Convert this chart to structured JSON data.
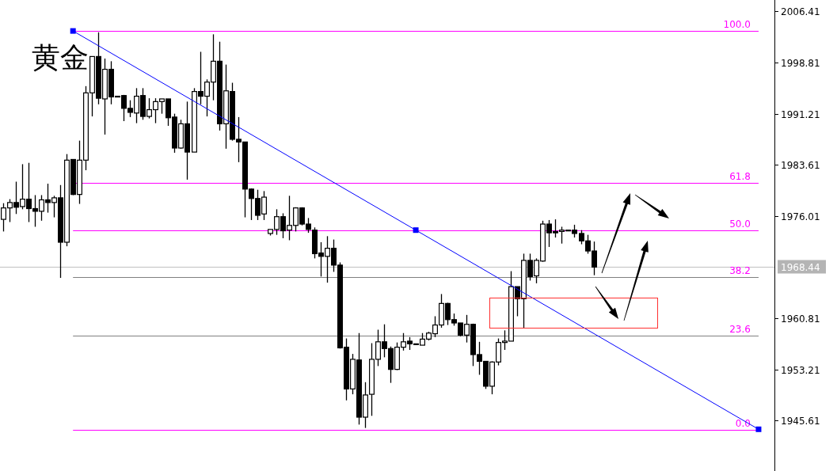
{
  "chart_data": {
    "type": "candlestick",
    "title": "黄金",
    "tick_labels": "y",
    "categories": [
      null,
      null,
      null,
      null,
      null,
      null,
      null,
      null,
      null,
      null,
      null,
      null,
      null,
      null,
      null,
      null,
      null,
      null,
      null,
      null,
      null,
      null,
      null,
      null,
      null,
      null,
      null,
      null,
      null,
      null,
      null,
      null,
      null,
      null,
      null,
      null,
      null,
      null,
      null,
      null,
      null,
      null,
      null,
      null,
      null,
      null,
      null,
      null,
      null,
      null,
      null,
      null,
      null,
      null,
      null,
      null,
      null,
      null,
      null,
      null,
      null,
      null,
      null,
      null,
      null,
      null,
      null,
      null,
      null,
      null,
      null,
      null,
      null,
      null,
      null,
      null,
      null,
      null,
      null,
      null,
      null,
      null,
      null,
      null,
      null,
      null,
      null,
      null,
      null,
      null,
      null,
      null,
      null,
      null,
      null,
      null,
      null,
      null,
      null,
      null,
      null,
      null,
      null,
      null,
      null,
      null,
      null,
      null,
      null,
      null,
      null,
      null,
      null,
      null,
      null,
      null,
      null,
      null,
      null,
      null,
      null,
      null
    ],
    "ohlc": [
      [
        1975.5,
        1977.9,
        1973.7,
        1977.2
      ],
      [
        1977.2,
        1978.5,
        1975.1,
        1978.0
      ],
      [
        1978.0,
        1981.1,
        1976.3,
        1977.3
      ],
      [
        1977.4,
        1983.7,
        1977.0,
        1978.5
      ],
      [
        1978.5,
        1983.9,
        1975.1,
        1977.1
      ],
      [
        1977.1,
        1979.1,
        1974.4,
        1976.7
      ],
      [
        1976.7,
        1979.1,
        1975.3,
        1978.4
      ],
      [
        1978.4,
        1980.8,
        1976.5,
        1978.0
      ],
      [
        1978.0,
        1979.0,
        1975.8,
        1978.7
      ],
      [
        1978.7,
        1980.6,
        1966.8,
        1972.1
      ],
      [
        1972.1,
        1985.2,
        1971.5,
        1984.3
      ],
      [
        1984.4,
        1984.4,
        1979.1,
        1979.2
      ],
      [
        1979.2,
        1987.2,
        1977.8,
        1984.3
      ],
      [
        1984.3,
        1995.3,
        1982.8,
        1994.3
      ],
      [
        1994.3,
        1999.7,
        1990.8,
        1999.7
      ],
      [
        1999.7,
        2003.3,
        1992.6,
        1993.5
      ],
      [
        1993.4,
        1999.4,
        1988.1,
        1997.8
      ],
      [
        1997.8,
        1999.0,
        1992.6,
        1993.7
      ],
      [
        1993.8,
        1993.8,
        1993.8,
        1993.8
      ],
      [
        1993.9,
        1994.0,
        1990.1,
        1992.0
      ],
      [
        1992.0,
        1993.2,
        1990.7,
        1991.4
      ],
      [
        1991.3,
        1995.0,
        1989.8,
        1993.8
      ],
      [
        1993.9,
        1995.0,
        1990.3,
        1990.8
      ],
      [
        1990.8,
        1993.5,
        1990.5,
        1991.8
      ],
      [
        1991.8,
        1993.5,
        1989.8,
        1993.0
      ],
      [
        1993.0,
        1993.4,
        1991.2,
        1993.4
      ],
      [
        1993.4,
        1993.4,
        1989.4,
        1990.6
      ],
      [
        1990.7,
        1991.2,
        1985.4,
        1986.1
      ],
      [
        1986.1,
        1990.3,
        1986.0,
        1989.7
      ],
      [
        1989.7,
        1993.0,
        1981.4,
        1985.5
      ],
      [
        1985.5,
        1995.0,
        1985.5,
        1994.5
      ],
      [
        1994.5,
        2000.4,
        1992.6,
        1993.8
      ],
      [
        1993.8,
        1996.3,
        1990.8,
        1995.9
      ],
      [
        1995.9,
        2003.0,
        1993.2,
        1999.0
      ],
      [
        1999.0,
        2001.9,
        1988.7,
        1989.7
      ],
      [
        1989.7,
        1998.5,
        1986.0,
        1994.6
      ],
      [
        1994.5,
        1995.8,
        1987.2,
        1987.4
      ],
      [
        1987.4,
        1990.7,
        1984.0,
        1987.0
      ],
      [
        1987.0,
        1987.0,
        1975.8,
        1980.0
      ],
      [
        1980.0,
        1980.1,
        1975.4,
        1978.6
      ],
      [
        1978.6,
        1979.9,
        1975.4,
        1976.1
      ],
      [
        1976.3,
        1979.7,
        1975.4,
        1978.8
      ],
      [
        1973.4,
        1974.0,
        1973.1,
        1974.0
      ],
      [
        1974.0,
        1977.0,
        1973.2,
        1975.9
      ],
      [
        1975.9,
        1976.4,
        1972.7,
        1973.8
      ],
      [
        1973.9,
        1979.0,
        1972.4,
        1974.6
      ],
      [
        1974.6,
        1977.3,
        1973.7,
        1977.2
      ],
      [
        1977.2,
        1977.3,
        1974.6,
        1974.8
      ],
      [
        1974.8,
        1975.7,
        1973.5,
        1974.0
      ],
      [
        1973.9,
        1974.3,
        1969.7,
        1970.4
      ],
      [
        1970.5,
        1972.1,
        1967.0,
        1970.0
      ],
      [
        1970.0,
        1973.0,
        1966.1,
        1971.2
      ],
      [
        1971.2,
        1972.5,
        1967.7,
        1968.7
      ],
      [
        1968.7,
        1969.1,
        1956.3,
        1956.4
      ],
      [
        1956.5,
        1957.8,
        1948.6,
        1950.3
      ],
      [
        1950.3,
        1955.5,
        1949.5,
        1954.7
      ],
      [
        1954.6,
        1958.6,
        1945.0,
        1946.1
      ],
      [
        1946.1,
        1951.3,
        1944.5,
        1949.4
      ],
      [
        1949.5,
        1957.1,
        1946.3,
        1954.7
      ],
      [
        1954.7,
        1959.1,
        1953.7,
        1957.3
      ],
      [
        1957.3,
        1959.9,
        1955.0,
        1956.3
      ],
      [
        1956.3,
        1956.6,
        1951.2,
        1953.2
      ],
      [
        1953.2,
        1957.2,
        1953.1,
        1956.5
      ],
      [
        1956.5,
        1958.6,
        1956.0,
        1957.3
      ],
      [
        1957.4,
        1958.0,
        1956.1,
        1957.0
      ],
      [
        1957.0,
        1957.0,
        1957.0,
        1957.0
      ],
      [
        1956.8,
        1958.6,
        1956.8,
        1957.7
      ],
      [
        1957.7,
        1958.8,
        1957.5,
        1958.6
      ],
      [
        1958.5,
        1961.1,
        1958.0,
        1959.8
      ],
      [
        1959.8,
        1964.4,
        1959.4,
        1963.0
      ],
      [
        1963.0,
        1963.1,
        1959.8,
        1960.6
      ],
      [
        1960.6,
        1961.5,
        1959.7,
        1960.1
      ],
      [
        1960.1,
        1960.1,
        1958.1,
        1958.3
      ],
      [
        1958.3,
        1961.3,
        1957.2,
        1959.9
      ],
      [
        1959.9,
        1960.0,
        1953.7,
        1955.4
      ],
      [
        1955.4,
        1957.3,
        1952.4,
        1954.4
      ],
      [
        1954.4,
        1954.4,
        1950.3,
        1950.7
      ],
      [
        1950.7,
        1954.4,
        1949.5,
        1954.3
      ],
      [
        1954.3,
        1957.8,
        1953.8,
        1957.2
      ],
      [
        1957.2,
        1959.0,
        1956.1,
        1957.4
      ],
      [
        1957.4,
        1967.8,
        1957.4,
        1965.5
      ],
      [
        1965.5,
        1965.5,
        1961.1,
        1963.7
      ],
      [
        1963.7,
        1970.4,
        1959.4,
        1969.4
      ],
      [
        1969.4,
        1970.4,
        1966.4,
        1967.0
      ],
      [
        1967.1,
        1969.7,
        1966.0,
        1969.4
      ],
      [
        1969.3,
        1975.3,
        1969.2,
        1974.8
      ],
      [
        1974.8,
        1975.4,
        1971.4,
        1973.5
      ],
      [
        1973.7,
        1975.5,
        1972.8,
        1973.5
      ],
      [
        1973.7,
        1974.4,
        1971.9,
        1973.9
      ],
      [
        1973.9,
        1973.9,
        1973.9,
        1973.9
      ],
      [
        1973.9,
        1974.7,
        1972.8,
        1973.4
      ],
      [
        1973.4,
        1973.9,
        1971.8,
        1972.3
      ],
      [
        1972.3,
        1973.2,
        1970.4,
        1970.8
      ],
      [
        1970.8,
        1972.2,
        1967.2,
        1968.4
      ],
      null,
      null,
      null,
      null,
      null,
      null,
      null,
      null,
      null,
      null,
      null,
      null,
      null,
      null,
      null,
      null,
      null,
      null,
      null,
      null,
      null,
      null,
      null,
      null,
      null,
      null,
      null,
      null
    ],
    "series": [
      {
        "type": "line",
        "values": [
          null,
          null,
          null,
          null,
          null,
          null,
          null,
          null,
          null,
          null,
          null,
          2003.5,
          null,
          null,
          null,
          null,
          null,
          null,
          null,
          null,
          null,
          null,
          null,
          null,
          null,
          null,
          null,
          null,
          null,
          null,
          null,
          null,
          null,
          null,
          null,
          null,
          null,
          null,
          null,
          null,
          null,
          null,
          null,
          null,
          null,
          null,
          null,
          null,
          null,
          null,
          null,
          null,
          null,
          null,
          null,
          null,
          null,
          null,
          null,
          null,
          null,
          null,
          null,
          null,
          null,
          1973.9,
          null,
          null,
          null,
          null,
          null,
          null,
          null,
          null,
          null,
          null,
          null,
          null,
          null,
          null,
          null,
          null,
          null,
          null,
          null,
          null,
          null,
          null,
          null,
          null,
          null,
          null,
          null,
          null,
          null,
          null,
          null,
          null,
          null,
          null,
          null,
          null,
          null,
          null,
          null,
          null,
          null,
          null,
          null,
          null,
          null,
          null,
          null,
          null,
          null,
          null,
          null,
          null,
          null,
          1944.3,
          null,
          null
        ],
        "color": "#0000ff",
        "marker": "square"
      }
    ],
    "ref_lines": [
      {
        "axis": "y",
        "value": 1968.44,
        "color": "#c0c0c0"
      },
      {
        "axis": "y",
        "value": 2003.54,
        "color": "#ff00ff"
      },
      {
        "axis": "y",
        "value": 1980.89,
        "color": "#ff00ff"
      },
      {
        "axis": "y",
        "value": 1973.9,
        "color": "#ff00ff"
      },
      {
        "axis": "y",
        "value": 1966.9,
        "color": "#808080"
      },
      {
        "axis": "y",
        "value": 1958.24,
        "color": "#808080"
      },
      {
        "axis": "y",
        "value": 1944.25,
        "color": "#ff00ff"
      }
    ],
    "annotations": [
      {
        "text": "100.0",
        "y": 2003.54
      },
      {
        "text": "61.8",
        "y": 1980.89
      },
      {
        "text": "50.0",
        "y": 1973.9
      },
      {
        "text": "38.2",
        "y": 1966.9
      },
      {
        "text": "23.6",
        "y": 1958.24
      },
      {
        "text": "0.0",
        "y": 1944.25
      }
    ],
    "ylim": [
      1938.1,
      2008.1
    ],
    "yticks": [
      1945.61,
      1953.21,
      1960.81,
      {
        "value": 1968.44,
        "label": "1968.44"
      },
      1976.01,
      1983.61,
      1991.21,
      1998.81,
      2006.41
    ]
  }
}
